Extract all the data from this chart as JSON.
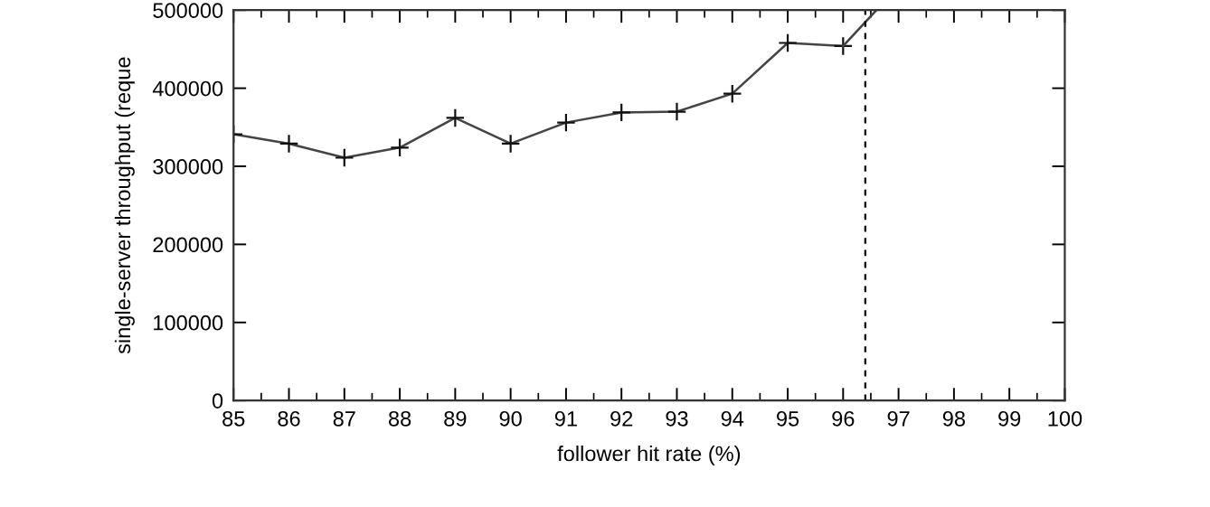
{
  "chart_data": {
    "type": "line",
    "xlabel": "follower hit rate (%)",
    "ylabel": "single-server throughput (reque",
    "xlim": [
      85,
      100
    ],
    "xticks": [
      85,
      86,
      87,
      88,
      89,
      90,
      91,
      92,
      93,
      94,
      95,
      96,
      97,
      98,
      99,
      100
    ],
    "ylim": [
      0,
      500000
    ],
    "yticks": [
      0,
      100000,
      200000,
      300000,
      400000,
      500000
    ],
    "series": [
      {
        "color": "#444444",
        "marker": "cross",
        "x": [
          85,
          86,
          87,
          88,
          89,
          90,
          91,
          92,
          93,
          94,
          95,
          96
        ],
        "values": [
          341000,
          329000,
          311000,
          324000,
          362000,
          329000,
          356000,
          369000,
          370000,
          393000,
          458000,
          454000
        ]
      },
      {
        "color": "#444444",
        "marker": "none",
        "x": [
          96,
          96.6
        ],
        "values": [
          454000,
          500000
        ]
      }
    ],
    "ref_lines": [
      {
        "axis": "x",
        "value": 96.4,
        "color": "#000000",
        "line_style": "dashed"
      }
    ],
    "grid": false,
    "legend": false
  }
}
